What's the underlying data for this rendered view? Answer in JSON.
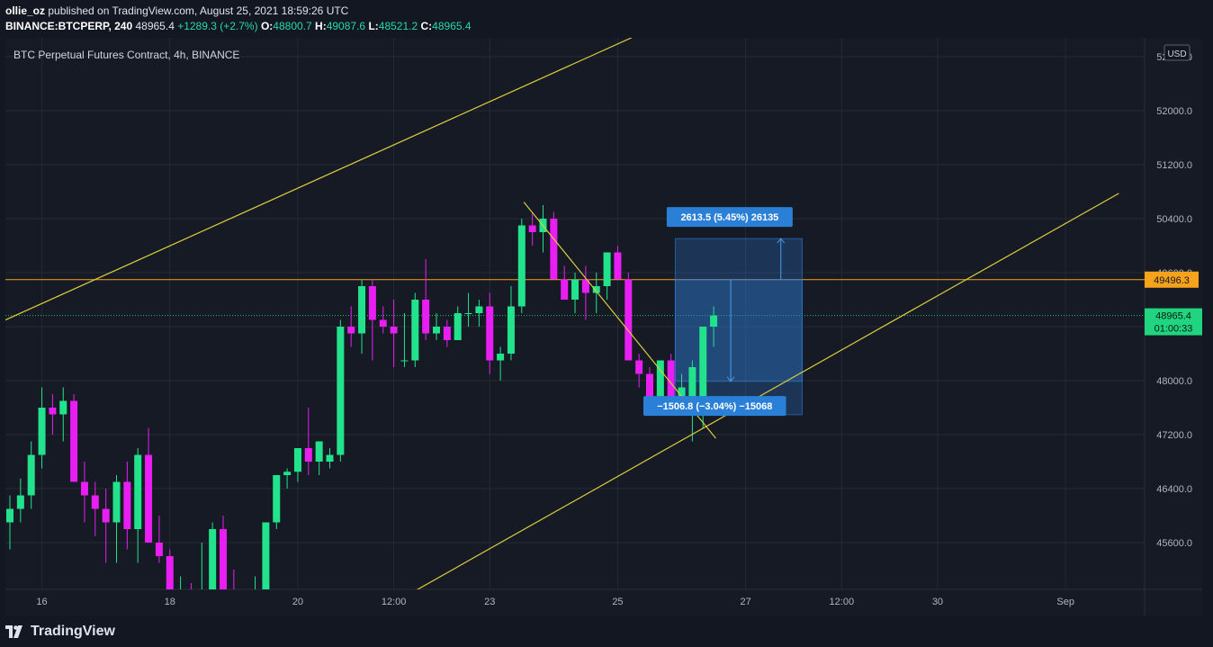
{
  "header": {
    "user": "ollie_oz",
    "published_text": " published on TradingView.com, August 25, 2021 18:59:26 UTC",
    "symbol": "BINANCE:BTCPERP, 240",
    "last": " 48965.4 ",
    "change": "+1289.3 (+2.7%)",
    "open_label": "O:",
    "open": "48800.7",
    "high_label": "H:",
    "high": "49087.6",
    "low_label": "L:",
    "low": "48521.2",
    "close_label": "C:",
    "close": "48965.4"
  },
  "chart_title": "BTC Perpetual Futures Contract, 4h, BINANCE",
  "footer": {
    "brand": "TradingView"
  },
  "chart_data": {
    "type": "candlestick",
    "currency": "USD",
    "y_ticks": [
      45600,
      46400,
      47200,
      48000,
      48800,
      49600,
      50400,
      51200,
      52000,
      52800
    ],
    "y_tick_labels": [
      "45600.0",
      "46400.0",
      "47200.0",
      "48000.0",
      "48800.0",
      "49600.0",
      "50400.0",
      "51200.0",
      "52000.0",
      "52800.0"
    ],
    "x_ticks": [
      {
        "label": "16",
        "bar": 3
      },
      {
        "label": "18",
        "bar": 15
      },
      {
        "label": "20",
        "bar": 27
      },
      {
        "label": "12:00",
        "bar": 36
      },
      {
        "label": "23",
        "bar": 45
      },
      {
        "label": "25",
        "bar": 57
      },
      {
        "label": "27",
        "bar": 69
      },
      {
        "label": "12:00",
        "bar": 78
      },
      {
        "label": "30",
        "bar": 87
      },
      {
        "label": "Sep",
        "bar": 99
      }
    ],
    "candles": [
      [
        45900,
        46300,
        45500,
        46100
      ],
      [
        46100,
        46550,
        45900,
        46300
      ],
      [
        46300,
        47100,
        46100,
        46900
      ],
      [
        46900,
        47900,
        46700,
        47600
      ],
      [
        47600,
        47800,
        47200,
        47500
      ],
      [
        47500,
        47900,
        47100,
        47700
      ],
      [
        47700,
        47800,
        46500,
        46500
      ],
      [
        46500,
        46800,
        45900,
        46300
      ],
      [
        46300,
        46500,
        45700,
        46100
      ],
      [
        46100,
        46400,
        45300,
        45900
      ],
      [
        45900,
        46600,
        45300,
        46500
      ],
      [
        46500,
        46800,
        45500,
        45800
      ],
      [
        45800,
        47000,
        45300,
        46900
      ],
      [
        46900,
        47300,
        45600,
        45600
      ],
      [
        45600,
        46000,
        45300,
        45400
      ],
      [
        45400,
        45500,
        44600,
        44800
      ],
      [
        44800,
        45100,
        44400,
        44800
      ],
      [
        44800,
        45000,
        44400,
        44700
      ],
      [
        44700,
        45600,
        44500,
        44900
      ],
      [
        44900,
        45900,
        44700,
        45800
      ],
      [
        45800,
        46000,
        44700,
        44900
      ],
      [
        44900,
        45200,
        44400,
        44600
      ],
      [
        44600,
        44900,
        44300,
        44700
      ],
      [
        44700,
        45100,
        44400,
        44800
      ],
      [
        44800,
        45900,
        44700,
        45900
      ],
      [
        45900,
        46600,
        45800,
        46600
      ],
      [
        46600,
        46700,
        46400,
        46650
      ],
      [
        46650,
        47000,
        46500,
        47000
      ],
      [
        47000,
        47600,
        46600,
        46800
      ],
      [
        46800,
        47100,
        46600,
        47100
      ],
      [
        46800,
        47000,
        46700,
        46900
      ],
      [
        46900,
        48900,
        46800,
        48800
      ],
      [
        48800,
        49100,
        48500,
        48700
      ],
      [
        48700,
        49500,
        48400,
        49400
      ],
      [
        49400,
        49500,
        48300,
        48900
      ],
      [
        48900,
        49100,
        48700,
        48800
      ],
      [
        48800,
        49200,
        48200,
        48700
      ],
      [
        48300,
        49000,
        48200,
        48300
      ],
      [
        48300,
        49300,
        48200,
        49200
      ],
      [
        49200,
        49800,
        48600,
        48700
      ],
      [
        48700,
        49000,
        48600,
        48800
      ],
      [
        48800,
        48900,
        48500,
        48600
      ],
      [
        48600,
        49100,
        48600,
        49000
      ],
      [
        49000,
        49300,
        48800,
        49000
      ],
      [
        49000,
        49200,
        48800,
        49100
      ],
      [
        49100,
        49300,
        48100,
        48300
      ],
      [
        48300,
        48500,
        48000,
        48400
      ],
      [
        48400,
        49400,
        48300,
        49100
      ],
      [
        49100,
        50400,
        49000,
        50300
      ],
      [
        50300,
        50500,
        50000,
        50200
      ],
      [
        50200,
        50600,
        49900,
        50400
      ],
      [
        50400,
        50500,
        49500,
        49500
      ],
      [
        49500,
        49700,
        49200,
        49200
      ],
      [
        49200,
        49600,
        49000,
        49500
      ],
      [
        49500,
        49700,
        48900,
        49300
      ],
      [
        49300,
        49600,
        49000,
        49400
      ],
      [
        49400,
        49900,
        49200,
        49900
      ],
      [
        49900,
        50000,
        49500,
        49500
      ],
      [
        49500,
        49600,
        48300,
        48300
      ],
      [
        48300,
        48400,
        47900,
        48100
      ],
      [
        48100,
        48200,
        47600,
        47600
      ],
      [
        47600,
        48300,
        47500,
        48300
      ],
      [
        48300,
        48400,
        47600,
        47600
      ],
      [
        47600,
        48100,
        47600,
        47900
      ],
      [
        47600,
        48300,
        47100,
        48200
      ],
      [
        47500,
        48800,
        47300,
        48800
      ],
      [
        48800,
        49100,
        48500,
        48965.4
      ]
    ],
    "horizontal_line": {
      "price": 49496.3,
      "label": "49496.3",
      "color": "#f7a21b"
    },
    "current_price": {
      "price": 48965.4,
      "label": "48965.4",
      "countdown": "01:00:33",
      "color": "#21d47f"
    },
    "trendlines": [
      {
        "from": {
          "bar": -2.3,
          "price": 48765
        },
        "to": {
          "bar": 62.7,
          "price": 53395
        }
      },
      {
        "from": {
          "bar": 32.9,
          "price": 44430
        },
        "to": {
          "bar": 104.0,
          "price": 50775
        }
      },
      {
        "from": {
          "bar": 48.2,
          "price": 50645
        },
        "to": {
          "bar": 66.2,
          "price": 47145
        }
      }
    ],
    "measures": [
      {
        "label": "2613.5 (5.45%) 26135",
        "from_bar": 62.4,
        "to_bar": 74.3,
        "high": 50105,
        "low": 47495,
        "arrow_bar": 72.3,
        "arrow_from": 49496,
        "arrow_to": 50105,
        "label_bar": 67.5,
        "label_price": 50425
      },
      {
        "label": "−1506.8 (−3.04%) −15068",
        "from_bar": 62.4,
        "to_bar": 74.3,
        "high": 49496,
        "low": 47990,
        "arrow_bar": 67.6,
        "arrow_from": 49496,
        "arrow_to": 47990,
        "label_bar": 66.1,
        "label_price": 47625
      }
    ],
    "colors": {
      "up": "#22e38c",
      "down": "#e81ef2",
      "trend": "#d9cd3c",
      "measure": "#2f7ed8",
      "grid": "#242a35"
    }
  }
}
